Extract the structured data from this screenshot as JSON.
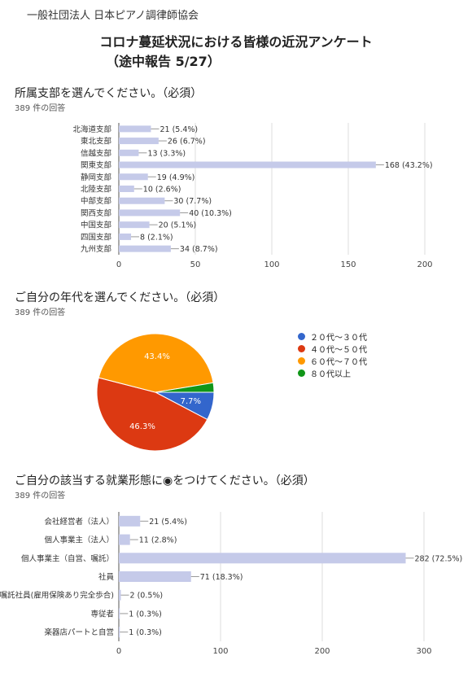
{
  "header": {
    "org": "一般社団法人 日本ピアノ調律師協会",
    "title": "コロナ蔓延状況における皆様の近況アンケート",
    "subtitle": "（途中報告 5/27）"
  },
  "chart_data": [
    {
      "type": "bar",
      "orientation": "horizontal",
      "title": "所属支部を選んでください。（必須）",
      "response_count": "389 件の回答",
      "categories": [
        "北海道支部",
        "東北支部",
        "信越支部",
        "関東支部",
        "静岡支部",
        "北陸支部",
        "中部支部",
        "関西支部",
        "中国支部",
        "四国支部",
        "九州支部"
      ],
      "values": [
        21,
        26,
        13,
        168,
        19,
        10,
        30,
        40,
        20,
        8,
        34
      ],
      "labels": [
        "21 (5.4%)",
        "26 (6.7%)",
        "13 (3.3%)",
        "168 (43.2%)",
        "19 (4.9%)",
        "10 (2.6%)",
        "30 (7.7%)",
        "40 (10.3%)",
        "20 (5.1%)",
        "8 (2.1%)",
        "34 (8.7%)"
      ],
      "xlim": [
        0,
        200
      ],
      "xticks": [
        0,
        50,
        100,
        150,
        200
      ],
      "bar_color": "#c5cae9"
    },
    {
      "type": "pie",
      "title": "ご自分の年代を選んでください。（必須）",
      "response_count": "389 件の回答",
      "categories": [
        "２０代～３０代",
        "４０代～５０代",
        "６０代～７０代",
        "８０代以上"
      ],
      "values": [
        7.7,
        46.3,
        43.4,
        2.6
      ],
      "slice_labels": [
        "7.7%",
        "46.3%",
        "43.4%",
        ""
      ],
      "colors": [
        "#3366cc",
        "#dc3912",
        "#ff9900",
        "#109618"
      ],
      "legend": "right"
    },
    {
      "type": "bar",
      "orientation": "horizontal",
      "title": "ご自分の該当する就業形態に◉をつけてください。（必須）",
      "response_count": "389 件の回答",
      "categories": [
        "会社経営者（法人）",
        "個人事業主（法人）",
        "個人事業主（自営、嘱託）",
        "社員",
        "嘱託社員(雇用保険あり完全歩合)",
        "専従者",
        "楽器店パートと自営"
      ],
      "values": [
        21,
        11,
        282,
        71,
        2,
        1,
        1
      ],
      "labels": [
        "21 (5.4%)",
        "11 (2.8%)",
        "282 (72.5%)",
        "71 (18.3%)",
        "2 (0.5%)",
        "1 (0.3%)",
        "1 (0.3%)"
      ],
      "xlim": [
        0,
        300
      ],
      "xticks": [
        0,
        100,
        200,
        300
      ],
      "bar_color": "#c5cae9"
    }
  ]
}
